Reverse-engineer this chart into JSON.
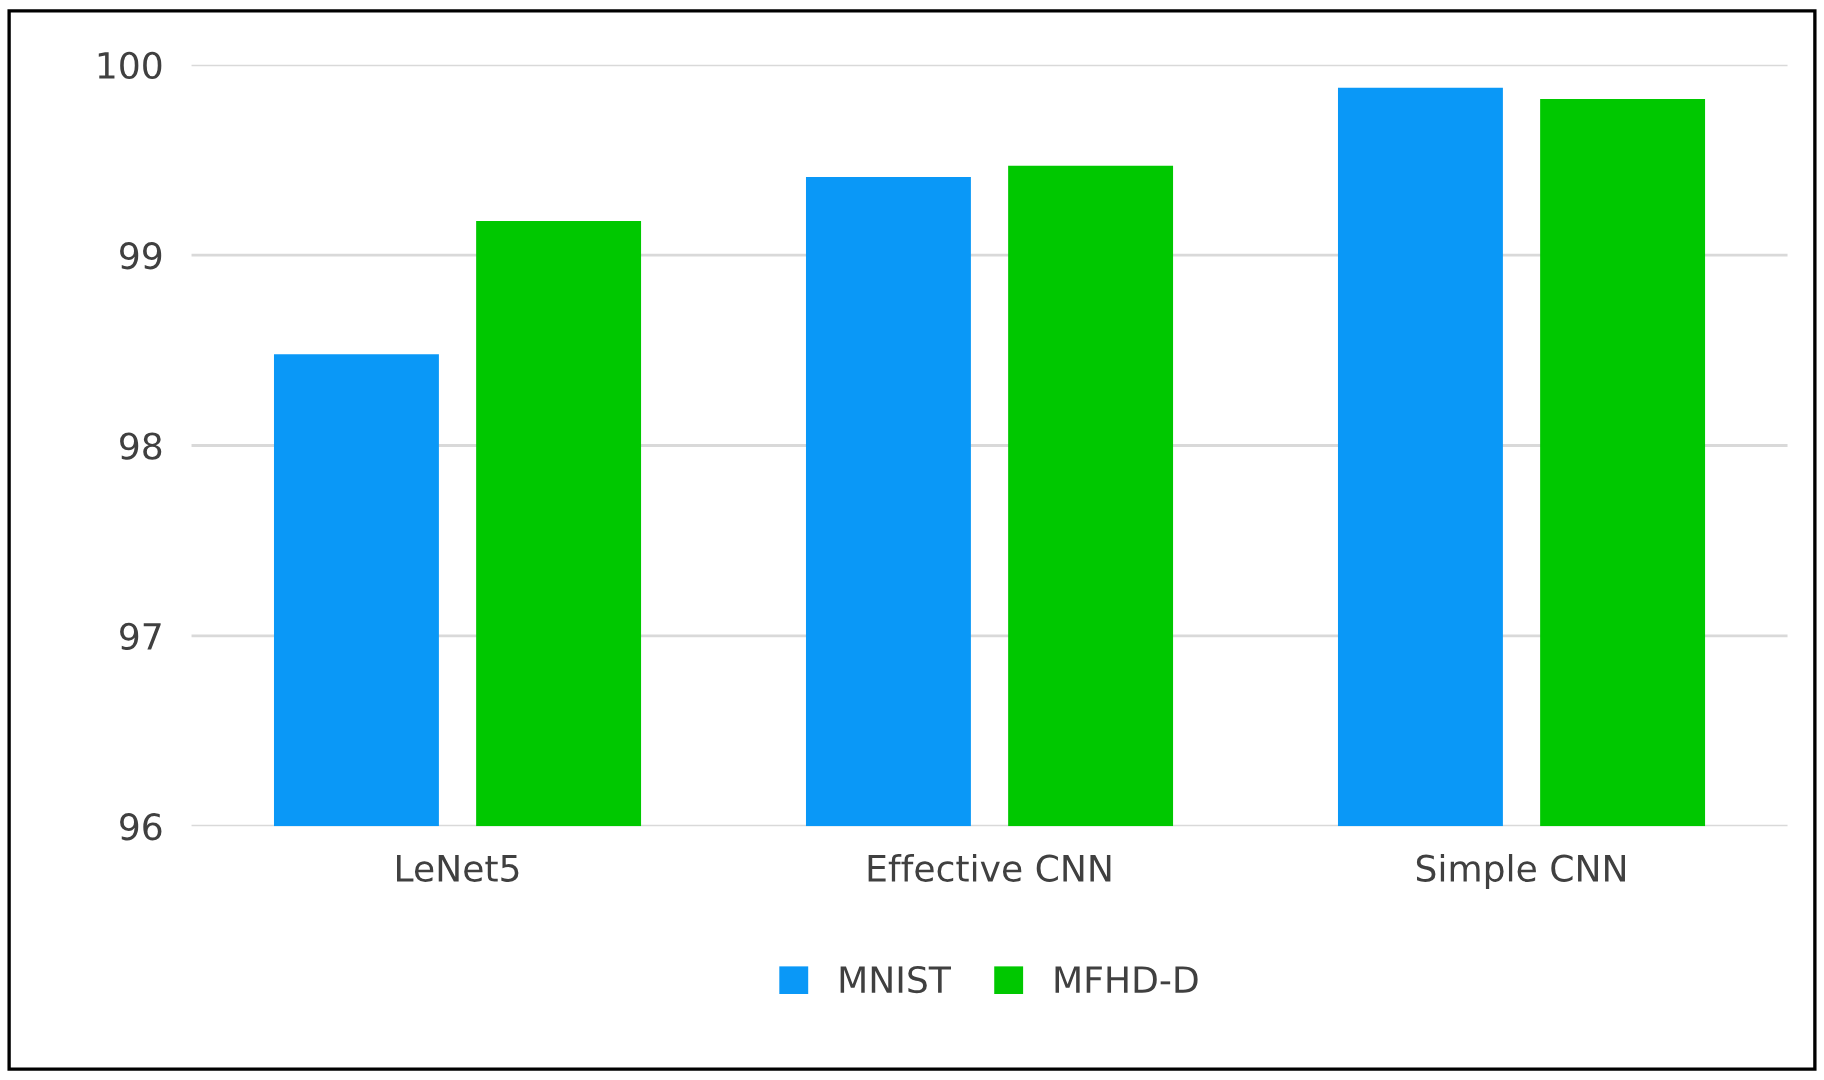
{
  "chart_data": {
    "type": "bar",
    "categories": [
      "LeNet5",
      "Effective CNN",
      "Simple CNN"
    ],
    "series": [
      {
        "name": "MNIST",
        "color": "#0a98f7",
        "values": [
          98.48,
          99.41,
          99.88
        ]
      },
      {
        "name": "MFHD-D",
        "color": "#00c800",
        "values": [
          99.18,
          99.47,
          99.82
        ]
      }
    ],
    "ylim": [
      96,
      100
    ],
    "yticks": [
      96,
      97,
      98,
      99,
      100
    ],
    "grid": "y",
    "legend": "bottom"
  }
}
